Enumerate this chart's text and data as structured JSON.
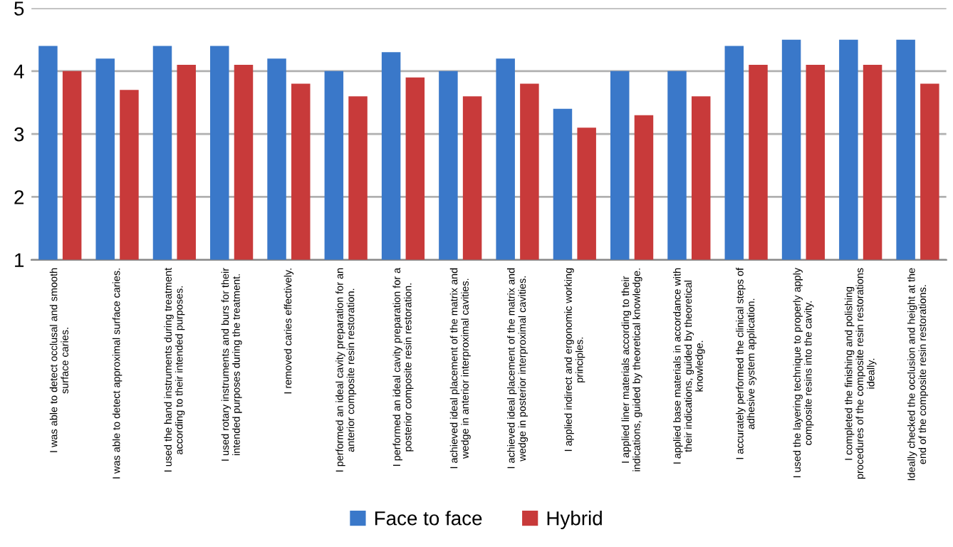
{
  "chart_data": {
    "type": "bar",
    "categories": [
      "I was able to detect occlusal and smooth\nsurface caries.",
      "I was able to detect approximal surface caries.",
      "I used the hand instruments during treatment\naccording to their intended purposes.",
      "I used rotary instruments and burs for their\nintended purposes during the treatment.",
      "I removed caries effectively.",
      "I performed an ideal cavity preparation for an\nanterior composite resin restoration.",
      "I performed an ideal cavity preparation for a\nposterior composite resin restoration.",
      "I achieved ideal placement of the matrix and\nwedge in anterior interproximal cavities.",
      "I achieved ideal placement of the matrix and\nwedge in posterior interproximal cavities.",
      "I applied indirect and ergonomic working\nprinciples.",
      "I applied liner materials according to their\nindications, guided by theoretical knowledge.",
      "I applied base materials in accordance with\ntheir indications, guided by theoretical\nknowledge.",
      "I accurately performed the clinical steps of\nadhesive system application.",
      "I used the layering technique to properly apply\ncomposite resins into the cavity.",
      "I completed the finishing and polishing\nprocedures of the composite resin restorations\nideally.",
      "Ideally checked the occlusion and height at the\nend of the composite resin restorations."
    ],
    "series": [
      {
        "name": "Face to face",
        "color": "#3a78c9",
        "values": [
          4.4,
          4.2,
          4.4,
          4.4,
          4.2,
          4.0,
          4.3,
          4.0,
          4.2,
          3.4,
          4.0,
          4.0,
          4.4,
          4.5,
          4.5,
          4.5
        ]
      },
      {
        "name": "Hybrid",
        "color": "#c83a3a",
        "values": [
          4.0,
          3.7,
          4.1,
          4.1,
          3.8,
          3.6,
          3.9,
          3.6,
          3.8,
          3.1,
          3.3,
          3.6,
          4.1,
          4.1,
          4.1,
          3.8
        ]
      }
    ],
    "ylim": [
      1,
      5
    ],
    "yticks": [
      1,
      2,
      3,
      4,
      5
    ],
    "grid": "y",
    "legend": "bottom"
  }
}
